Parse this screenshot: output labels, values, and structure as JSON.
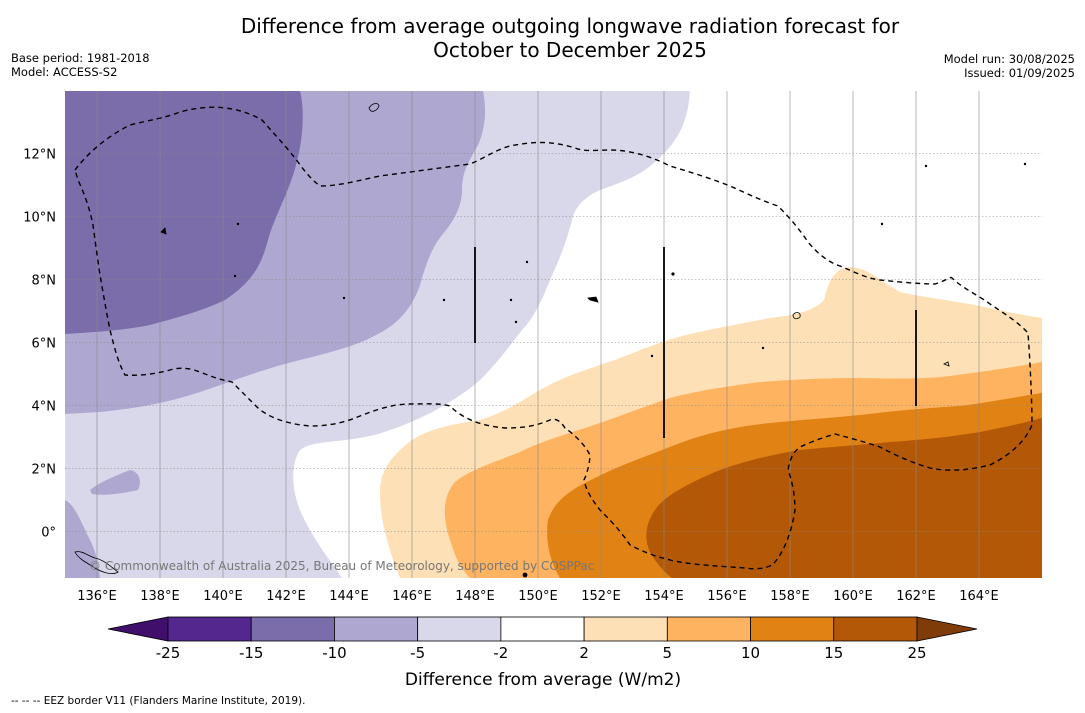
{
  "title_line1": "Difference from average outgoing longwave radiation forecast for",
  "title_line2": "October to December 2025",
  "meta_left": {
    "base_period": "Base period: 1981-2018",
    "model": "Model: ACCESS-S2"
  },
  "meta_right": {
    "model_run": "Model run: 30/08/2025",
    "issued": "Issued: 01/09/2025"
  },
  "map": {
    "lon_labels": [
      "136°E",
      "138°E",
      "140°E",
      "142°E",
      "144°E",
      "146°E",
      "148°E",
      "150°E",
      "152°E",
      "154°E",
      "156°E",
      "158°E",
      "160°E",
      "162°E",
      "164°E"
    ],
    "lat_labels": [
      "12°N",
      "10°N",
      "8°N",
      "6°N",
      "4°N",
      "2°N",
      "0°"
    ],
    "copyright": "© Commonwealth of Australia 2025, Bureau of Meteorology, supported by COSPPac",
    "border_style": "dashed"
  },
  "colorbar": {
    "tick_labels": [
      "-25",
      "-15",
      "-10",
      "-5",
      "-2",
      "2",
      "5",
      "10",
      "15",
      "25"
    ],
    "colors": [
      "#3f0f6b",
      "#54278f",
      "#7b6daa",
      "#aea8d1",
      "#d8d8ea",
      "#ffffff",
      "#fee0b6",
      "#fdb35f",
      "#e08214",
      "#b35806",
      "#7f3b08"
    ],
    "title": "Difference from average (W/m2)"
  },
  "footnote": "--  --  -- EEZ border V11 (Flanders Marine Institute, 2019)."
}
